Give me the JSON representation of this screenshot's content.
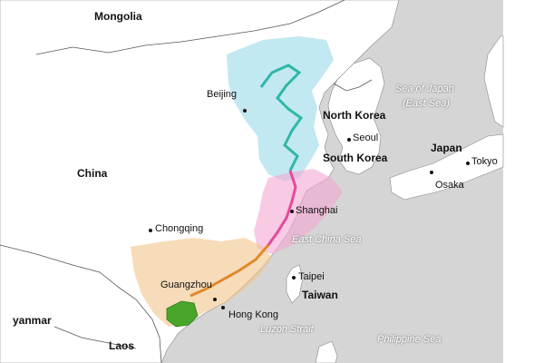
{
  "colors": {
    "sea": "#d5d5d5",
    "land": "#ffffff",
    "border": "#555555",
    "north_region": "#8fd6e6",
    "central_region": "#f3a6d2",
    "south_region": "#f2c48a",
    "hainan": "#4aa52b"
  },
  "map": {
    "countries": [
      "Mongolia",
      "China",
      "North Korea",
      "South Korea",
      "Japan",
      "Taiwan",
      "Laos",
      "yanmar"
    ],
    "cities": [
      "Beijing",
      "Seoul",
      "Tokyo",
      "Osaka",
      "Shanghai",
      "Chongqing",
      "Taipei",
      "Guangzhou",
      "Hong Kong"
    ],
    "seas": {
      "sea_of_japan": "Sea of Japan",
      "east_sea": "(East Sea)",
      "east_china_sea": "East China Sea",
      "luzon_strait": "Luzon Strait",
      "philippine_sea": "Philippine Sea"
    }
  }
}
